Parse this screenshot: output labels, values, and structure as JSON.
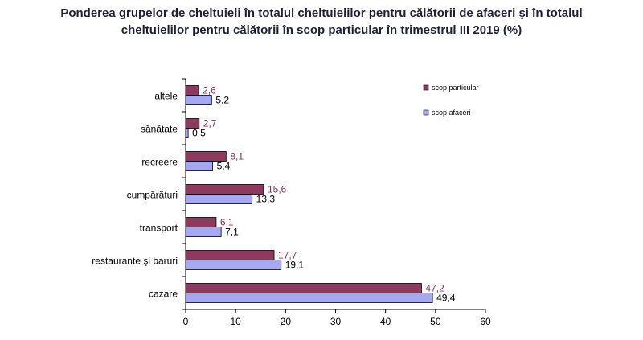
{
  "title_line1": "Ponderea grupelor de cheltuieli în totalul cheltuielilor pentru călătorii de afaceri şi în totalul",
  "title_line2": "cheltuielilor pentru călătorii în scop particular în trimestrul III  2019 (%)",
  "chart_data": {
    "type": "bar",
    "orientation": "horizontal",
    "categories": [
      "altele",
      "sănătate",
      "recreere",
      "cumpărături",
      "transport",
      "restaurante şi baruri",
      "cazare"
    ],
    "series": [
      {
        "name": "scop particular",
        "color": "#8e3a5e",
        "values": [
          2.6,
          2.7,
          8.1,
          15.6,
          6.1,
          17.7,
          47.2
        ],
        "labels": [
          "2,6",
          "2,7",
          "8,1",
          "15,6",
          "6,1",
          "17,7",
          "47,2"
        ]
      },
      {
        "name": "scop afaceri",
        "color": "#a7a8f2",
        "values": [
          5.2,
          0.5,
          5.4,
          13.3,
          7.1,
          19.1,
          49.4
        ],
        "labels": [
          "5,2",
          "0,5",
          "5,4",
          "13,3",
          "7,1",
          "19,1",
          "49,4"
        ]
      }
    ],
    "xlim": [
      0,
      60
    ],
    "xticks": [
      "0",
      "10",
      "20",
      "30",
      "40",
      "50",
      "60"
    ],
    "legend_position": "right",
    "grid": false
  }
}
